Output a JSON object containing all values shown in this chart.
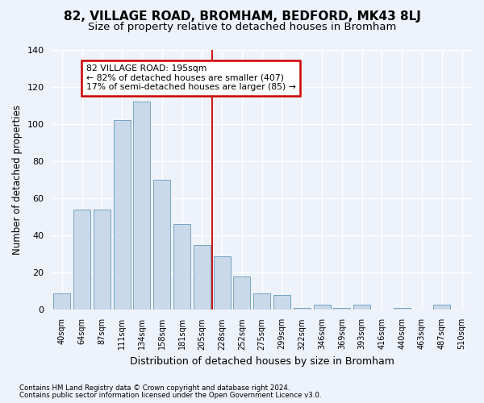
{
  "title": "82, VILLAGE ROAD, BROMHAM, BEDFORD, MK43 8LJ",
  "subtitle": "Size of property relative to detached houses in Bromham",
  "xlabel": "Distribution of detached houses by size in Bromham",
  "ylabel": "Number of detached properties",
  "bar_color": "#c9d9ea",
  "bar_edge_color": "#6699bb",
  "categories": [
    "40sqm",
    "64sqm",
    "87sqm",
    "111sqm",
    "134sqm",
    "158sqm",
    "181sqm",
    "205sqm",
    "228sqm",
    "252sqm",
    "275sqm",
    "299sqm",
    "322sqm",
    "346sqm",
    "369sqm",
    "393sqm",
    "416sqm",
    "440sqm",
    "463sqm",
    "487sqm",
    "510sqm"
  ],
  "values": [
    9,
    54,
    54,
    102,
    112,
    70,
    46,
    35,
    29,
    18,
    9,
    8,
    1,
    3,
    1,
    3,
    0,
    1,
    0,
    3,
    0
  ],
  "ylim": [
    0,
    140
  ],
  "yticks": [
    0,
    20,
    40,
    60,
    80,
    100,
    120,
    140
  ],
  "property_line_x": 7.5,
  "annotation_title": "82 VILLAGE ROAD: 195sqm",
  "annotation_line1": "← 82% of detached houses are smaller (407)",
  "annotation_line2": "17% of semi-detached houses are larger (85) →",
  "footer1": "Contains HM Land Registry data © Crown copyright and database right 2024.",
  "footer2": "Contains public sector information licensed under the Open Government Licence v3.0.",
  "background_color": "#eef2fb",
  "grid_color": "#ffffff",
  "annotation_box_color": "#ffffff",
  "annotation_box_edge": "#cc0000",
  "property_line_color": "#cc0000",
  "title_fontsize": 11,
  "subtitle_fontsize": 9.5,
  "figsize": [
    6.0,
    5.0
  ]
}
